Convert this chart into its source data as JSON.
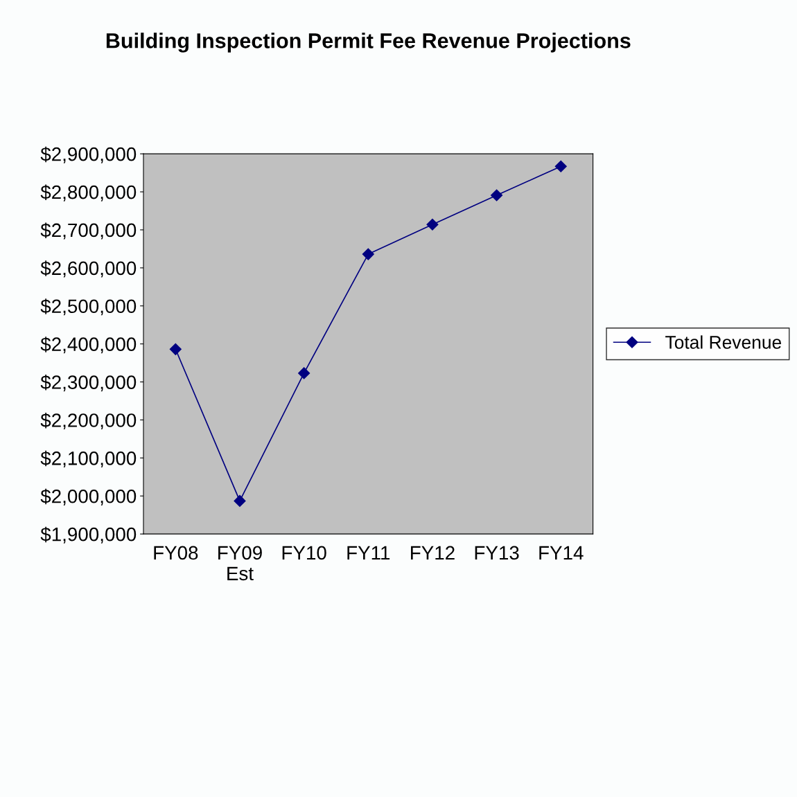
{
  "chart_data": {
    "type": "line",
    "title": "Building Inspection Permit Fee Revenue Projections",
    "categories": [
      "FY08",
      "FY09\nEst",
      "FY10",
      "FY11",
      "FY12",
      "FY13",
      "FY14"
    ],
    "series": [
      {
        "name": "Total Revenue",
        "color": "#000080",
        "values": [
          2386000,
          1987000,
          2323000,
          2636000,
          2714000,
          2791000,
          2867000
        ]
      }
    ],
    "ylim": [
      1900000,
      2900000
    ],
    "yticks": [
      {
        "value": 1900000,
        "label": "$1,900,000"
      },
      {
        "value": 2000000,
        "label": "$2,000,000"
      },
      {
        "value": 2100000,
        "label": "$2,100,000"
      },
      {
        "value": 2200000,
        "label": "$2,200,000"
      },
      {
        "value": 2300000,
        "label": "$2,300,000"
      },
      {
        "value": 2400000,
        "label": "$2,400,000"
      },
      {
        "value": 2500000,
        "label": "$2,500,000"
      },
      {
        "value": 2600000,
        "label": "$2,600,000"
      },
      {
        "value": 2700000,
        "label": "$2,700,000"
      },
      {
        "value": 2800000,
        "label": "$2,800,000"
      },
      {
        "value": 2900000,
        "label": "$2,900,000"
      }
    ],
    "grid": false,
    "legend": "right",
    "marker": "diamond",
    "line_style": "solid"
  }
}
